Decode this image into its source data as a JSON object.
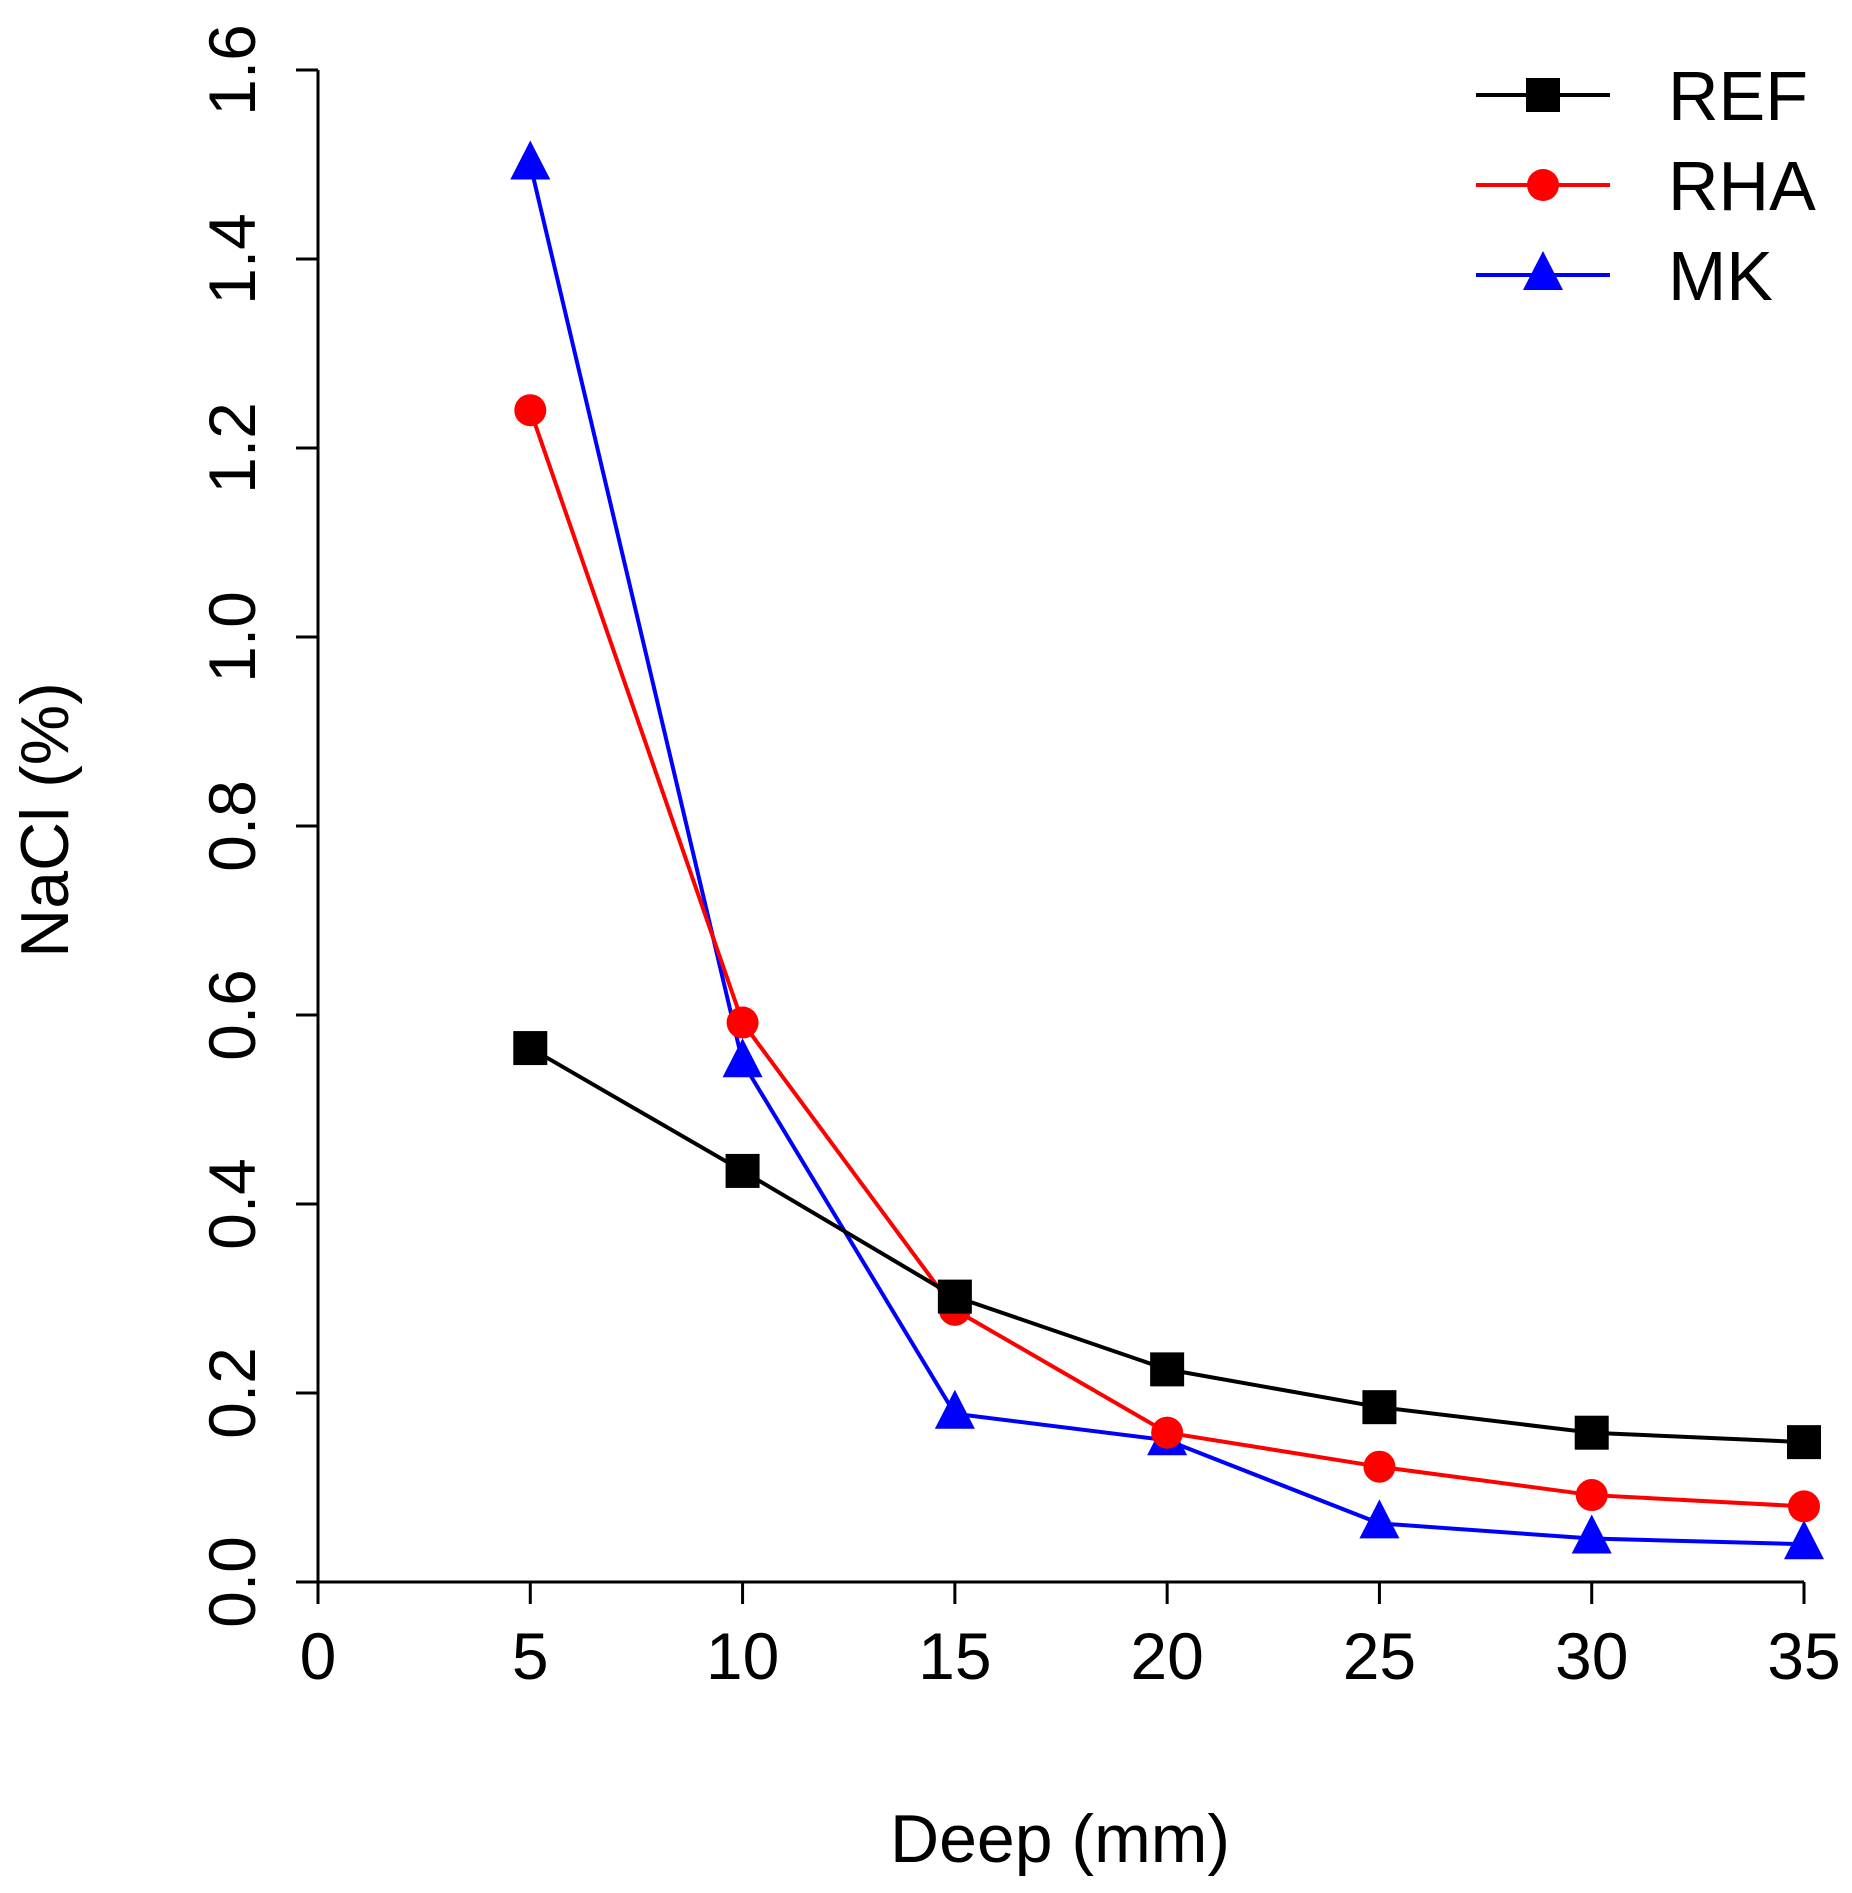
{
  "chart_data": {
    "type": "line",
    "title": "",
    "xlabel": "Deep (mm)",
    "ylabel": "NaCl (%)",
    "xlim": [
      0,
      35
    ],
    "ylim": [
      0,
      1.6
    ],
    "x_ticks": [
      "0",
      "5",
      "10",
      "15",
      "20",
      "25",
      "30",
      "35"
    ],
    "y_ticks": [
      "0.0",
      "0.2",
      "0.4",
      "0.6",
      "0.8",
      "1.0",
      "1.2",
      "1.4",
      "1.6"
    ],
    "x": [
      5,
      10,
      15,
      20,
      25,
      30,
      35
    ],
    "series": [
      {
        "name": "REF",
        "color": "#000000",
        "marker": "square",
        "values": [
          0.565,
          0.435,
          0.302,
          0.225,
          0.185,
          0.158,
          0.148
        ]
      },
      {
        "name": "RHA",
        "color": "#ff0000",
        "marker": "circle",
        "values": [
          1.24,
          0.592,
          0.288,
          0.158,
          0.122,
          0.092,
          0.08
        ]
      },
      {
        "name": "MK",
        "color": "#0000ff",
        "marker": "triangle",
        "values": [
          1.5,
          0.55,
          0.178,
          0.15,
          0.062,
          0.046,
          0.04
        ]
      }
    ],
    "legend_position": "top-right",
    "grid": false
  }
}
